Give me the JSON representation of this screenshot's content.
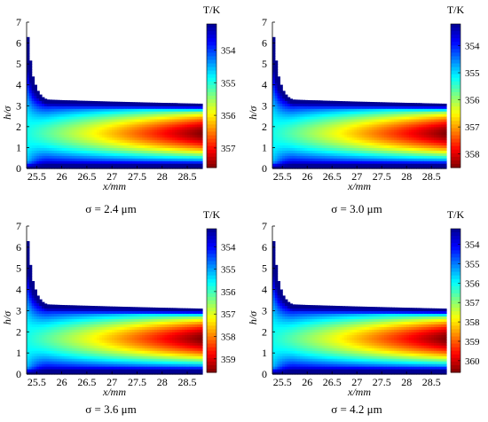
{
  "chart_data": [
    {
      "type": "heatmap",
      "caption": "σ = 2.4 μm",
      "xlabel": "x/mm",
      "ylabel": "h/σ",
      "xlim": [
        25.3,
        28.8
      ],
      "ylim": [
        0,
        7
      ],
      "x_ticks": [
        "25.5",
        "26",
        "26.5",
        "27",
        "27.5",
        "28",
        "28.5"
      ],
      "y_ticks": [
        "0",
        "1",
        "2",
        "3",
        "4",
        "5",
        "6",
        "7"
      ],
      "colorbar_title": "T/K",
      "colorbar_ticks": [
        "354",
        "355",
        "356",
        "357"
      ],
      "colorbar_range": [
        353.2,
        357.6
      ],
      "peak_value": 357.6,
      "film_edge": [
        [
          25.32,
          6.4
        ],
        [
          25.4,
          4.6
        ],
        [
          25.5,
          3.8
        ],
        [
          25.6,
          3.45
        ],
        [
          25.7,
          3.3
        ],
        [
          26.0,
          3.27
        ],
        [
          27.0,
          3.2
        ],
        [
          28.0,
          3.14
        ],
        [
          28.75,
          3.1
        ]
      ]
    },
    {
      "type": "heatmap",
      "caption": "σ = 3.0 μm",
      "xlabel": "x/mm",
      "ylabel": "h/σ",
      "xlim": [
        25.3,
        28.8
      ],
      "ylim": [
        0,
        7
      ],
      "x_ticks": [
        "25.5",
        "26",
        "26.5",
        "27",
        "27.5",
        "28",
        "28.5"
      ],
      "y_ticks": [
        "0",
        "1",
        "2",
        "3",
        "4",
        "5",
        "6",
        "7"
      ],
      "colorbar_title": "T/K",
      "colorbar_ticks": [
        "354",
        "355",
        "356",
        "357",
        "358"
      ],
      "colorbar_range": [
        353.2,
        358.5
      ],
      "peak_value": 358.5,
      "film_edge": [
        [
          25.32,
          6.4
        ],
        [
          25.4,
          4.6
        ],
        [
          25.5,
          3.8
        ],
        [
          25.6,
          3.45
        ],
        [
          25.7,
          3.3
        ],
        [
          26.0,
          3.27
        ],
        [
          27.0,
          3.2
        ],
        [
          28.0,
          3.14
        ],
        [
          28.75,
          3.1
        ]
      ]
    },
    {
      "type": "heatmap",
      "caption": "σ = 3.6 μm",
      "xlabel": "x/mm",
      "ylabel": "h/σ",
      "xlim": [
        25.3,
        28.8
      ],
      "ylim": [
        0,
        7
      ],
      "x_ticks": [
        "25.5",
        "26",
        "26.5",
        "27",
        "27.5",
        "28",
        "28.5"
      ],
      "y_ticks": [
        "0",
        "1",
        "2",
        "3",
        "4",
        "5",
        "6",
        "7"
      ],
      "colorbar_title": "T/K",
      "colorbar_ticks": [
        "354",
        "355",
        "356",
        "357",
        "358",
        "359"
      ],
      "colorbar_range": [
        353.2,
        359.6
      ],
      "peak_value": 359.6,
      "film_edge": [
        [
          25.32,
          6.4
        ],
        [
          25.4,
          4.6
        ],
        [
          25.5,
          3.8
        ],
        [
          25.6,
          3.45
        ],
        [
          25.7,
          3.3
        ],
        [
          26.0,
          3.27
        ],
        [
          27.0,
          3.2
        ],
        [
          28.0,
          3.14
        ],
        [
          28.75,
          3.1
        ]
      ]
    },
    {
      "type": "heatmap",
      "caption": "σ = 4.2 μm",
      "xlabel": "x/mm",
      "ylabel": "h/σ",
      "xlim": [
        25.3,
        28.8
      ],
      "ylim": [
        0,
        7
      ],
      "x_ticks": [
        "25.5",
        "26",
        "26.5",
        "27",
        "27.5",
        "28",
        "28.5"
      ],
      "y_ticks": [
        "0",
        "1",
        "2",
        "3",
        "4",
        "5",
        "6",
        "7"
      ],
      "colorbar_title": "T/K",
      "colorbar_ticks": [
        "354",
        "355",
        "356",
        "357",
        "358",
        "359",
        "360"
      ],
      "colorbar_range": [
        353.2,
        360.6
      ],
      "peak_value": 360.6,
      "film_edge": [
        [
          25.32,
          6.4
        ],
        [
          25.4,
          4.6
        ],
        [
          25.5,
          3.8
        ],
        [
          25.6,
          3.45
        ],
        [
          25.7,
          3.3
        ],
        [
          26.0,
          3.27
        ],
        [
          27.0,
          3.2
        ],
        [
          28.0,
          3.14
        ],
        [
          28.75,
          3.1
        ]
      ]
    }
  ],
  "colormap": "jet",
  "colormap_stops": [
    "#00008f",
    "#0000ff",
    "#00ffff",
    "#ffff00",
    "#ff0000",
    "#800000"
  ]
}
